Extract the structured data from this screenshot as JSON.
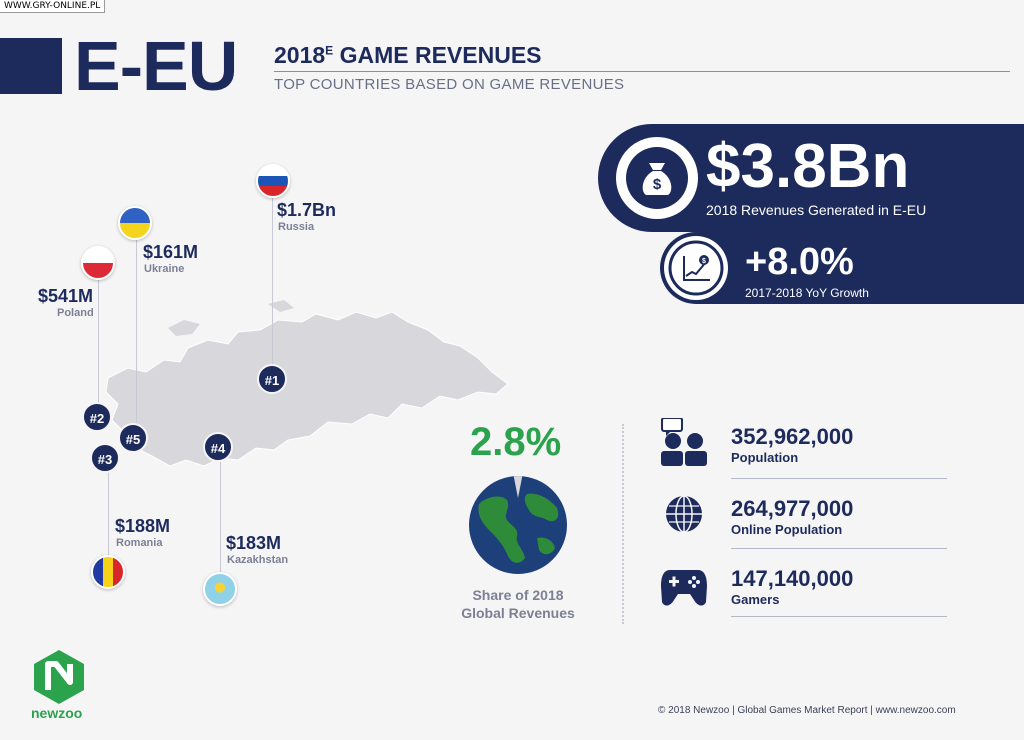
{
  "watermark": "WWW.GRY-ONLINE.PL",
  "header": {
    "region": "E-EU",
    "title_year": "2018",
    "title_sup": "E",
    "title_rest": " GAME REVENUES",
    "subtitle": "TOP COUNTRIES BASED ON GAME REVENUES"
  },
  "revenue": {
    "icon": "money-bag-icon",
    "value": "$3.8Bn",
    "label": "2018 Revenues Generated in E-EU"
  },
  "growth": {
    "icon": "growth-chart-icon",
    "value": "+8.0%",
    "label": "2017-2018 YoY Growth"
  },
  "countries": [
    {
      "rank": "#1",
      "value": "$1.7Bn",
      "name": "Russia"
    },
    {
      "rank": "#2",
      "value": "$541M",
      "name": "Poland"
    },
    {
      "rank": "#3",
      "value": "$188M",
      "name": "Romania"
    },
    {
      "rank": "#4",
      "value": "$183M",
      "name": "Kazakhstan"
    },
    {
      "rank": "#5",
      "value": "$161M",
      "name": "Ukraine"
    }
  ],
  "share": {
    "value": "2.8%",
    "label_line1": "Share of 2018",
    "label_line2": "Global Revenues",
    "fraction": 0.028
  },
  "stats": [
    {
      "icon": "people-icon",
      "value": "352,962,000",
      "label": "Population"
    },
    {
      "icon": "globe-icon",
      "value": "264,977,000",
      "label": "Online Population"
    },
    {
      "icon": "gamepad-icon",
      "value": "147,140,000",
      "label": "Gamers"
    }
  ],
  "brand": {
    "name": "newzoo"
  },
  "footer": "© 2018 Newzoo | Global Games Market Report | www.newzoo.com",
  "colors": {
    "navy": "#1d2a5c",
    "green": "#2ba24c",
    "background": "#f6f5f6"
  }
}
